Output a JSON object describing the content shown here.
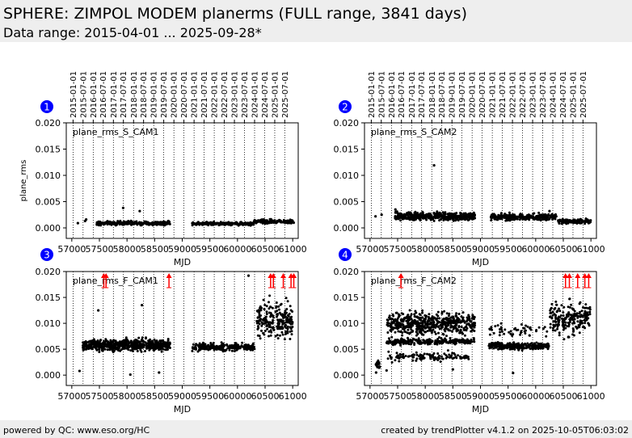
{
  "header": {
    "title": "SPHERE: ZIMPOL MODEM planerms (FULL range, 3841 days)",
    "subtitle": "Data range: 2015-04-01 ... 2025-09-28*"
  },
  "footer": {
    "left": "powered by QC: www.eso.org/HC",
    "right": "created by trendPlotter v4.1.2 on 2025-10-05T06:03:02"
  },
  "colors": {
    "marker": "#0000ff",
    "outlier": "#ff0000",
    "point": "#000000",
    "header_bg": "#eeeeee"
  },
  "chart_data": [
    {
      "type": "scatter",
      "panel": "1",
      "label": "plane_rms_S_CAM1",
      "xlabel": "MJD",
      "ylabel": "plane_rms",
      "xlim": [
        56900,
        61100
      ],
      "ylim": [
        -0.002,
        0.02
      ],
      "yticks": [
        "0.000",
        "0.005",
        "0.010",
        "0.015",
        "0.020"
      ],
      "xticks": [
        "57000",
        "57500",
        "58000",
        "58500",
        "59000",
        "59500",
        "60000",
        "60500",
        "61000"
      ],
      "date_ticks": [
        "2015-01-01",
        "2015-07-01",
        "2016-01-01",
        "2016-07-01",
        "2017-01-01",
        "2017-07-01",
        "2018-01-01",
        "2018-07-01",
        "2019-01-01",
        "2019-07-01",
        "2020-01-01",
        "2020-07-01",
        "2021-01-01",
        "2021-07-01",
        "2022-01-01",
        "2022-07-01",
        "2023-01-01",
        "2023-07-01",
        "2024-01-01",
        "2024-07-01",
        "2025-01-01",
        "2025-07-01"
      ],
      "bands": [
        {
          "x0": 57450,
          "x1": 58780,
          "y": 0.0009,
          "spread": 0.0004,
          "n": 280
        },
        {
          "x0": 59180,
          "x1": 60300,
          "y": 0.0008,
          "spread": 0.0003,
          "n": 240
        },
        {
          "x0": 60300,
          "x1": 61020,
          "y": 0.0012,
          "spread": 0.0004,
          "n": 160
        }
      ],
      "points": [
        [
          57110,
          0.0009
        ],
        [
          57240,
          0.0013
        ],
        [
          57260,
          0.0016
        ],
        [
          57930,
          0.0038
        ],
        [
          58230,
          0.0032
        ],
        [
          58320,
          0.0012
        ]
      ],
      "outliers": []
    },
    {
      "type": "scatter",
      "panel": "2",
      "label": "plane_rms_S_CAM2",
      "xlabel": "MJD",
      "ylabel": "",
      "xlim": [
        56900,
        61100
      ],
      "ylim": [
        -0.002,
        0.02
      ],
      "yticks": [
        "0.000",
        "0.005",
        "0.010",
        "0.015",
        "0.020"
      ],
      "xticks": [
        "57000",
        "57500",
        "58000",
        "58500",
        "59000",
        "59500",
        "60000",
        "60500",
        "61000"
      ],
      "date_ticks": [
        "2015-01-01",
        "2015-07-01",
        "2016-01-01",
        "2016-07-01",
        "2017-01-01",
        "2017-07-01",
        "2018-01-01",
        "2018-07-01",
        "2019-01-01",
        "2019-07-01",
        "2020-01-01",
        "2020-07-01",
        "2021-01-01",
        "2021-07-01",
        "2022-01-01",
        "2022-07-01",
        "2023-01-01",
        "2023-07-01",
        "2024-01-01",
        "2024-07-01",
        "2025-01-01",
        "2025-07-01"
      ],
      "bands": [
        {
          "x0": 57450,
          "x1": 58900,
          "y": 0.0022,
          "spread": 0.0008,
          "n": 420
        },
        {
          "x0": 59180,
          "x1": 60380,
          "y": 0.0021,
          "spread": 0.0006,
          "n": 320
        },
        {
          "x0": 60400,
          "x1": 61000,
          "y": 0.0012,
          "spread": 0.0005,
          "n": 130
        }
      ],
      "points": [
        [
          57100,
          0.0022
        ],
        [
          57210,
          0.0025
        ],
        [
          58160,
          0.0119
        ],
        [
          57460,
          0.0035
        ],
        [
          60250,
          0.0032
        ]
      ],
      "outliers": []
    },
    {
      "type": "scatter",
      "panel": "3",
      "label": "plane_rms_F_CAM1",
      "xlabel": "MJD",
      "ylabel": "",
      "xlim": [
        56900,
        61100
      ],
      "ylim": [
        -0.002,
        0.02
      ],
      "yticks": [
        "0.000",
        "0.005",
        "0.010",
        "0.015",
        "0.020"
      ],
      "xticks": [
        "57000",
        "57500",
        "58000",
        "58500",
        "59000",
        "59500",
        "60000",
        "60500",
        "61000"
      ],
      "date_ticks": [],
      "bands": [
        {
          "x0": 57200,
          "x1": 58780,
          "y": 0.0058,
          "spread": 0.0011,
          "n": 650
        },
        {
          "x0": 59180,
          "x1": 60320,
          "y": 0.0054,
          "spread": 0.0008,
          "n": 260
        },
        {
          "x0": 60350,
          "x1": 61000,
          "y": 0.0105,
          "spread": 0.0035,
          "n": 220
        }
      ],
      "points": [
        [
          57140,
          0.0008
        ],
        [
          57480,
          0.0125
        ],
        [
          58060,
          0.0001
        ],
        [
          58270,
          0.0135
        ],
        [
          58580,
          0.0005
        ],
        [
          60200,
          0.0192
        ]
      ],
      "outliers": [
        57580,
        57620,
        58760,
        60600,
        60650,
        60830,
        60970,
        61020
      ]
    },
    {
      "type": "scatter",
      "panel": "4",
      "label": "plane_rms_F_CAM2",
      "xlabel": "MJD",
      "ylabel": "",
      "xlim": [
        56900,
        61100
      ],
      "ylim": [
        -0.002,
        0.02
      ],
      "yticks": [
        "0.000",
        "0.005",
        "0.010",
        "0.015",
        "0.020"
      ],
      "xticks": [
        "57000",
        "57500",
        "58000",
        "58500",
        "59000",
        "59500",
        "60000",
        "60500",
        "61000"
      ],
      "date_ticks": [],
      "bands": [
        {
          "x0": 57100,
          "x1": 57180,
          "y": 0.002,
          "spread": 0.0008,
          "n": 20
        },
        {
          "x0": 57300,
          "x1": 58900,
          "y": 0.01,
          "spread": 0.0022,
          "n": 520
        },
        {
          "x0": 57300,
          "x1": 58900,
          "y": 0.0065,
          "spread": 0.0006,
          "n": 260
        },
        {
          "x0": 57300,
          "x1": 58800,
          "y": 0.0035,
          "spread": 0.0009,
          "n": 120
        },
        {
          "x0": 59150,
          "x1": 60250,
          "y": 0.0056,
          "spread": 0.0007,
          "n": 260
        },
        {
          "x0": 59150,
          "x1": 60250,
          "y": 0.0085,
          "spread": 0.0015,
          "n": 50
        },
        {
          "x0": 60250,
          "x1": 61000,
          "y": 0.011,
          "spread": 0.0035,
          "n": 200
        }
      ],
      "points": [
        [
          57110,
          0.0005
        ],
        [
          57300,
          0.0009
        ],
        [
          58500,
          0.0011
        ],
        [
          59590,
          0.0004
        ]
      ],
      "outliers": [
        57560,
        60540,
        60610,
        60760,
        60890,
        60960
      ]
    }
  ]
}
